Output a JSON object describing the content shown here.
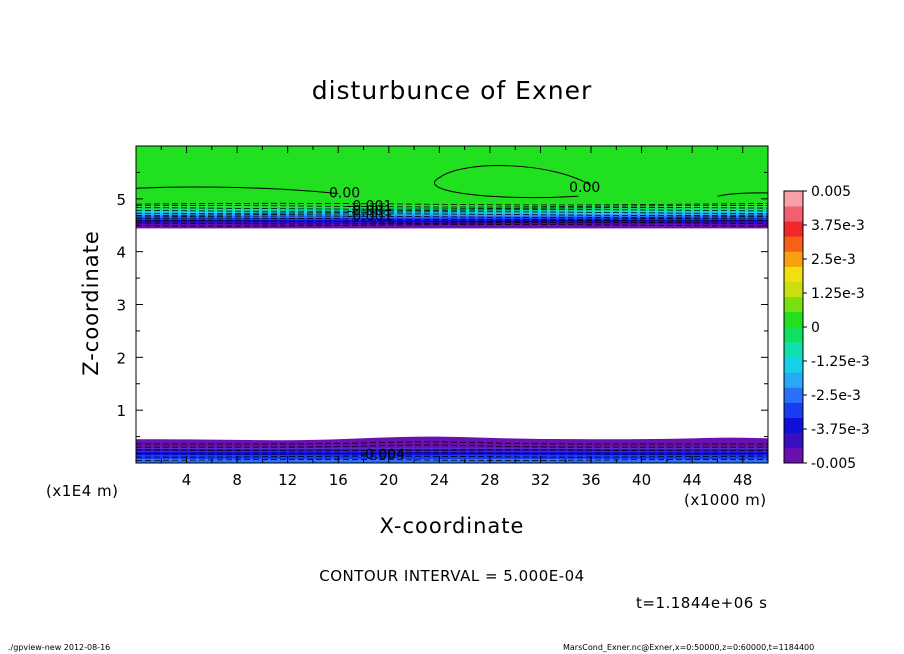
{
  "chart_data": {
    "type": "heatmap",
    "title": "disturbunce of Exner",
    "xlabel": "X-coordinate",
    "ylabel": "Z-coordinate",
    "x_unit_label": "(x1000 m)",
    "y_unit_label": "(x1E4 m)",
    "x_ticks": [
      4,
      8,
      12,
      16,
      20,
      24,
      28,
      32,
      36,
      40,
      44,
      48
    ],
    "y_ticks": [
      1,
      2,
      3,
      4,
      5
    ],
    "xlim": [
      0,
      50
    ],
    "ylim": [
      0,
      6
    ],
    "colorbar": {
      "labels": [
        "0.005",
        "3.75e-3",
        "2.5e-3",
        "1.25e-3",
        "0",
        "-1.25e-3",
        "-2.5e-3",
        "-3.75e-3",
        "-0.005"
      ],
      "range": [
        -0.005,
        0.005
      ],
      "colors": [
        "#6a0fb0",
        "#3a0fc0",
        "#1010d8",
        "#1a3cf0",
        "#2a70f8",
        "#2aa8f8",
        "#16d0e8",
        "#10e0b0",
        "#10e060",
        "#20e020",
        "#78e010",
        "#c8e010",
        "#f0e010",
        "#f8a010",
        "#f86018",
        "#f02828",
        "#f06070",
        "#f8a0a8"
      ]
    },
    "contour_labels": [
      "0.00",
      "0.00",
      "-0.001",
      "-0.001",
      "-0.001",
      "-0.004"
    ],
    "regions": [
      {
        "z_range": [
          4.5,
          6.0
        ],
        "value_range": [
          -0.005,
          0.0
        ],
        "description_value": "upper layer near 0, decreasing to -0.005 below z=5"
      },
      {
        "z_range": [
          0.0,
          0.45
        ],
        "value_range": [
          -0.005,
          -0.001
        ],
        "description_value": "lower layer strongly negative"
      }
    ],
    "contour_interval": "CONTOUR INTERVAL = 5.000E-04",
    "time": "t=1.1844e+06 s"
  },
  "footer": {
    "left": "./gpview-new   2012-08-16",
    "right": "MarsCond_Exner.nc@Exner,x=0:50000,z=0:60000,t=1184400"
  }
}
